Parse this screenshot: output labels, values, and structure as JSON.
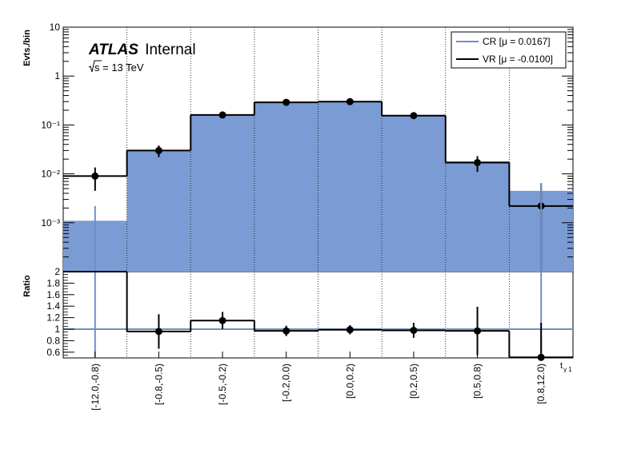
{
  "label": {
    "experiment": "ATLAS",
    "status": "Internal",
    "energy_prefix": "s",
    "energy_text": " = 13 TeV"
  },
  "axes": {
    "y_top": "Evts./bin",
    "y_bottom": "Ratio",
    "x_main": "t",
    "x_sub": "γ 1"
  },
  "legend": {
    "position": "top-right",
    "cr": "CR [μ = 0.0167]",
    "vr": "VR [μ = -0.0100]"
  },
  "colors": {
    "cr_fill": "#7b9bd4",
    "cr_line": "#6f8fcc",
    "vr": "#000000",
    "grid": "#000000"
  },
  "chart_data": [
    {
      "type": "bar",
      "panel": "main",
      "scale": "log",
      "ylim": [
        0.0001,
        10
      ],
      "y_tick_labels": [
        "10",
        "1",
        "10⁻¹",
        "10⁻²",
        "10⁻³"
      ],
      "grid": "vertical dotted",
      "categories": [
        "[-12.0,-0.8)",
        "[-0.8,-0.5)",
        "[-0.5,-0.2)",
        "[-0.2,0.0)",
        "[0.0,0.2)",
        "[0.2,0.5)",
        "[0.5,0.8)",
        "[0.8,12.0)"
      ],
      "series": [
        {
          "name": "CR [μ = 0.0167]",
          "style": "filled-histogram",
          "values": [
            0.0011,
            0.031,
            0.16,
            0.3,
            0.31,
            0.16,
            0.018,
            0.0045
          ]
        },
        {
          "name": "VR [μ = -0.0100]",
          "style": "points-with-errors",
          "values": [
            0.009,
            0.03,
            0.16,
            0.29,
            0.3,
            0.155,
            0.017,
            0.0022
          ],
          "err_low": [
            0.0045,
            0.008,
            0.02,
            0.025,
            0.025,
            0.02,
            0.006,
            0.0021
          ],
          "err_high": [
            0.0045,
            0.008,
            0.02,
            0.025,
            0.025,
            0.02,
            0.006,
            0.0041
          ]
        }
      ]
    },
    {
      "type": "line",
      "panel": "ratio",
      "ylabel": "Ratio",
      "ylim": [
        0.5,
        2.0
      ],
      "y_tick_labels": [
        "2",
        "1.8",
        "1.6",
        "1.4",
        "1.2",
        "1",
        "0.8",
        "0.6"
      ],
      "reference_line": 1.0,
      "categories": [
        "[-12.0,-0.8)",
        "[-0.8,-0.5)",
        "[-0.5,-0.2)",
        "[-0.2,0.0)",
        "[0.0,0.2)",
        "[0.2,0.5)",
        "[0.5,0.8)",
        "[0.8,12.0)"
      ],
      "series": [
        {
          "name": "VR [μ = -0.0100]",
          "values": [
            2.05,
            0.96,
            1.15,
            0.97,
            0.99,
            0.98,
            0.97,
            0.51
          ],
          "err_low": [
            1.0,
            0.3,
            0.15,
            0.09,
            0.08,
            0.13,
            0.42,
            0.51
          ],
          "err_high": [
            1.0,
            0.3,
            0.15,
            0.09,
            0.08,
            0.13,
            0.42,
            0.6
          ]
        }
      ]
    }
  ]
}
